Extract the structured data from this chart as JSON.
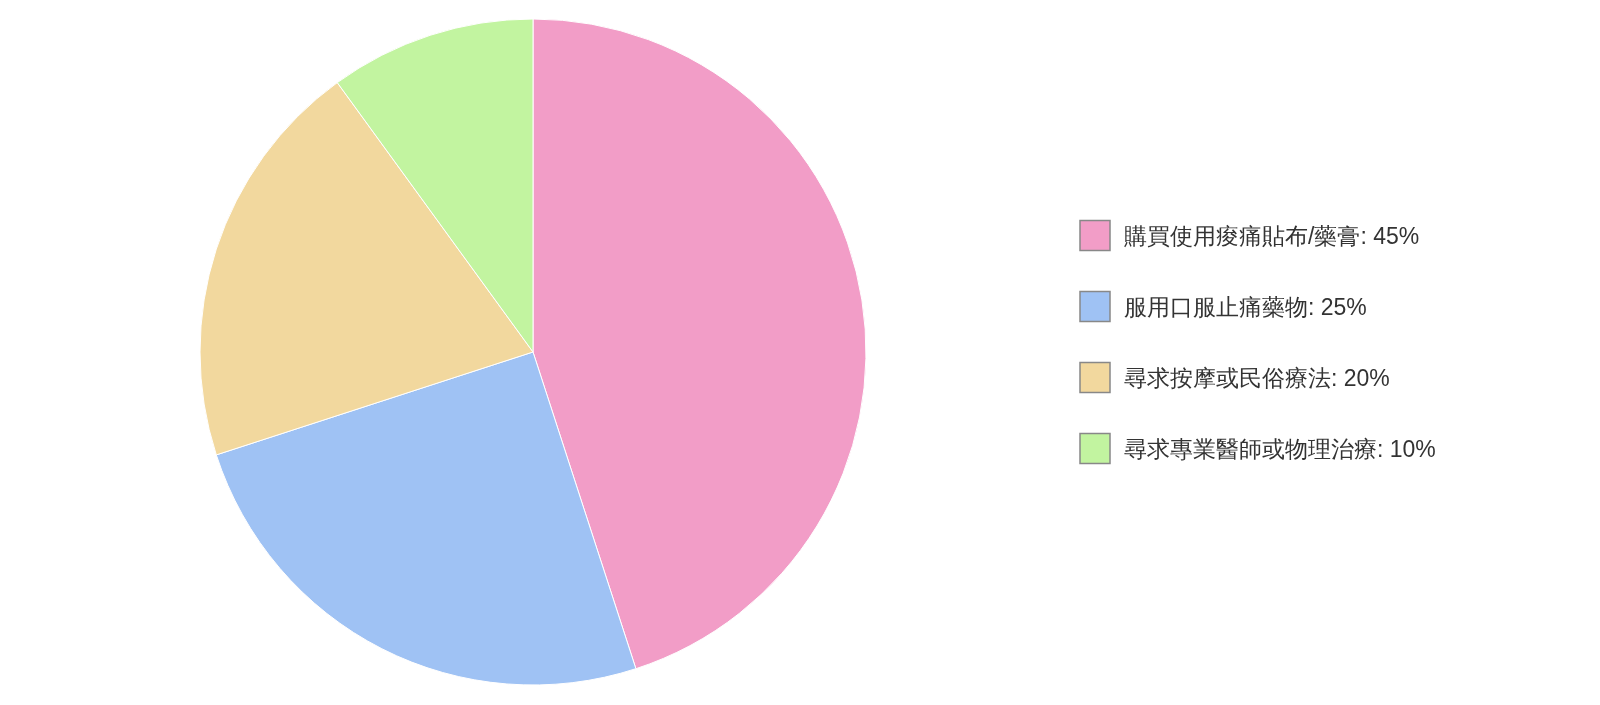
{
  "chart_data": {
    "type": "pie",
    "categories": [
      "購買使用痠痛貼布/藥膏",
      "服用口服止痛藥物",
      "尋求按摩或民俗療法",
      "尋求專業醫師或物理治療"
    ],
    "values": [
      45,
      25,
      20,
      10
    ],
    "colors": [
      "#f29dc7",
      "#9fc2f4",
      "#f2d89e",
      "#c2f4a0"
    ],
    "value_labels": [
      "45%",
      "25%",
      "20%",
      "10%"
    ],
    "legend": "right"
  }
}
